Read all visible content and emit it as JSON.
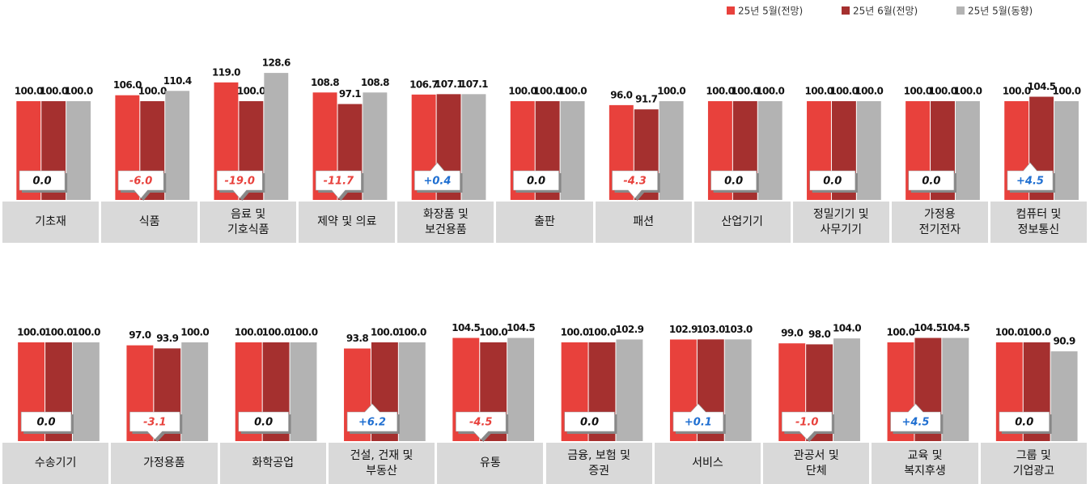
{
  "chart_data": {
    "type": "bar",
    "categories": [
      "기초재",
      "식품",
      "음료 및\n기호식품",
      "제약 및 의료",
      "화장품 및\n보건용품",
      "출판",
      "패션",
      "산업기기",
      "정밀기기 및\n사무기기",
      "가정용\n전기전자",
      "컴퓨터 및\n정보통신",
      "수송기기",
      "가정용품",
      "화학공업",
      "건설, 건재 및\n부동산",
      "유통",
      "금융, 보험 및\n증권",
      "서비스",
      "관공서 및\n단체",
      "교육 및\n복지후생",
      "그룹 및\n기업광고"
    ],
    "series": [
      {
        "name": "25년 5월(전망)",
        "color": "#e8413c",
        "values": [
          100,
          106,
          119,
          108.8,
          106.7,
          100,
          96,
          100,
          100,
          100,
          100,
          100,
          97,
          100,
          93.8,
          104.5,
          100,
          102.9,
          99,
          100,
          100
        ],
        "value_labels": [
          "100.0",
          "106.0",
          "119.0",
          "108.8",
          "106.7",
          "100.0",
          "96.0",
          "100.0",
          "100.0",
          "100.0",
          "100.0",
          "100.0",
          "97.0",
          "100.0",
          "93.8",
          "104.5",
          "100.0",
          "102.9",
          "99.0",
          "100.0",
          "100.0"
        ]
      },
      {
        "name": "25년 6월(전망)",
        "color": "#a5302f",
        "values": [
          100,
          100,
          100,
          97.1,
          107.1,
          100,
          91.7,
          100,
          100,
          100,
          104.5,
          100,
          93.9,
          100,
          100,
          100,
          100,
          103,
          98,
          104.5,
          100
        ],
        "value_labels": [
          "100.0",
          "100.0",
          "100.0",
          "97.1",
          "107.1",
          "100.0",
          "91.7",
          "100.0",
          "100.0",
          "100.0",
          "104.5",
          "100.0",
          "93.9",
          "100.0",
          "100.0",
          "100.0",
          "100.0",
          "103.0",
          "98.0",
          "104.5",
          "100.0"
        ]
      },
      {
        "name": "25년 5월(동향)",
        "color": "#b3b3b3",
        "values": [
          100,
          110.4,
          128.6,
          108.8,
          107.1,
          100,
          100,
          100,
          100,
          100,
          100,
          100,
          100,
          100,
          100,
          104.5,
          102.9,
          103,
          104,
          104.5,
          90.9
        ],
        "value_labels": [
          "100.0",
          "110.4",
          "128.6",
          "108.8",
          "107.1",
          "100.0",
          "100.0",
          "100.0",
          "100.0",
          "100.0",
          "100.0",
          "100.0",
          "100.0",
          "100.0",
          "100.0",
          "104.5",
          "102.9",
          "103.0",
          "104.0",
          "104.5",
          "90.9"
        ]
      }
    ],
    "changes": {
      "values": [
        0,
        -6,
        -19,
        -11.7,
        0.4,
        0,
        -4.3,
        0,
        0,
        0,
        4.5,
        0,
        -3.1,
        0,
        6.2,
        -4.5,
        0,
        0.1,
        -1,
        4.5,
        0
      ],
      "value_labels": [
        "0.0",
        "-6.0",
        "-19.0",
        "-11.7",
        "+0.4",
        "0.0",
        "-4.3",
        "0.0",
        "0.0",
        "0.0",
        "+4.5",
        "0.0",
        "-3.1",
        "0.0",
        "+6.2",
        "-4.5",
        "0.0",
        "+0.1",
        "-1.0",
        "+4.5",
        "0.0"
      ]
    },
    "ylim": [
      0,
      135
    ]
  }
}
